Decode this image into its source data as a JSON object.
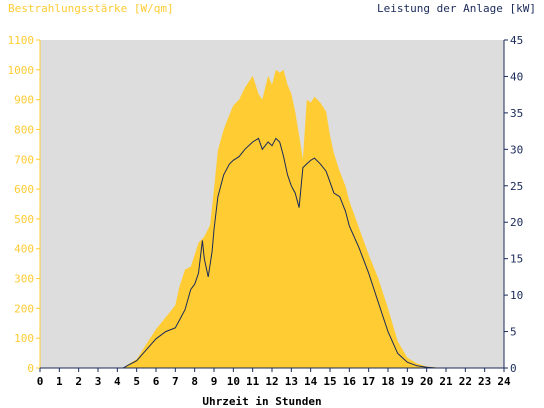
{
  "chart_data": {
    "type": "area",
    "left_axis_title": "Bestrahlungsstärke [W/qm]",
    "right_axis_title": "Leistung der Anlage [kW]",
    "xlabel": "Uhrzeit in Stunden",
    "x_range": [
      0,
      24
    ],
    "x_ticks": [
      "0",
      "1",
      "2",
      "3",
      "4",
      "5",
      "6",
      "7",
      "8",
      "9",
      "10",
      "11",
      "12",
      "13",
      "14",
      "15",
      "16",
      "17",
      "18",
      "19",
      "20",
      "21",
      "22",
      "23",
      "24"
    ],
    "left_range": [
      0,
      1100
    ],
    "left_ticks": [
      "0",
      "100",
      "200",
      "300",
      "400",
      "500",
      "600",
      "700",
      "800",
      "900",
      "1000",
      "1100"
    ],
    "right_range": [
      0,
      45
    ],
    "right_ticks": [
      "0",
      "5",
      "10",
      "15",
      "20",
      "25",
      "30",
      "35",
      "40",
      "45"
    ],
    "grid": false,
    "series": [
      {
        "name": "Bestrahlungsstärke [W/qm]",
        "axis": "left",
        "kind": "area",
        "x": [
          0,
          4.3,
          4.5,
          5,
          5.5,
          6,
          6.5,
          7,
          7.2,
          7.5,
          7.8,
          8.0,
          8.2,
          8.5,
          8.8,
          9.0,
          9.2,
          9.5,
          9.8,
          10.0,
          10.3,
          10.6,
          11.0,
          11.3,
          11.5,
          11.8,
          12.0,
          12.2,
          12.4,
          12.6,
          12.8,
          13.0,
          13.2,
          13.4,
          13.6,
          13.8,
          14.0,
          14.2,
          14.5,
          14.8,
          15.0,
          15.2,
          15.5,
          15.8,
          16.0,
          16.5,
          17.0,
          17.5,
          18.0,
          18.5,
          19.0,
          19.5,
          20.0,
          20.5,
          21.0,
          24
        ],
        "y": [
          0,
          0,
          10,
          30,
          80,
          130,
          170,
          210,
          270,
          330,
          340,
          380,
          420,
          440,
          480,
          600,
          730,
          800,
          850,
          880,
          900,
          940,
          980,
          920,
          900,
          980,
          950,
          1000,
          990,
          1000,
          950,
          920,
          860,
          780,
          700,
          900,
          890,
          910,
          890,
          860,
          780,
          720,
          660,
          610,
          560,
          470,
          380,
          300,
          200,
          90,
          35,
          15,
          5,
          2,
          0,
          0
        ],
        "color": "#ffcc33"
      },
      {
        "name": "Leistung der Anlage [kW]",
        "axis": "right",
        "kind": "line",
        "x": [
          0,
          4.3,
          4.5,
          5,
          5.5,
          6,
          6.5,
          7,
          7.2,
          7.5,
          7.8,
          8.0,
          8.2,
          8.4,
          8.5,
          8.7,
          8.9,
          9.0,
          9.2,
          9.5,
          9.8,
          10.0,
          10.3,
          10.6,
          11.0,
          11.3,
          11.5,
          11.8,
          12.0,
          12.2,
          12.4,
          12.6,
          12.8,
          13.0,
          13.2,
          13.4,
          13.6,
          13.8,
          14.0,
          14.2,
          14.5,
          14.8,
          15.0,
          15.2,
          15.5,
          15.8,
          16.0,
          16.5,
          17.0,
          17.5,
          18.0,
          18.5,
          19.0,
          19.5,
          20.0,
          20.5,
          21.0,
          24
        ],
        "y": [
          0,
          0,
          0.3,
          1,
          2.5,
          4,
          5,
          5.5,
          6.5,
          8,
          10.8,
          11.5,
          13,
          17.5,
          15,
          12.5,
          16,
          19,
          23.5,
          26.5,
          28,
          28.5,
          29,
          30,
          31,
          31.5,
          30,
          31,
          30.5,
          31.5,
          31,
          29,
          26.5,
          25,
          24,
          22,
          27.5,
          28,
          28.5,
          28.8,
          28,
          27,
          25.5,
          24,
          23.5,
          21.5,
          19.5,
          16.5,
          13,
          9,
          5,
          2,
          0.8,
          0.3,
          0.1,
          0,
          0,
          0
        ],
        "color": "#1a2a5a"
      }
    ]
  }
}
